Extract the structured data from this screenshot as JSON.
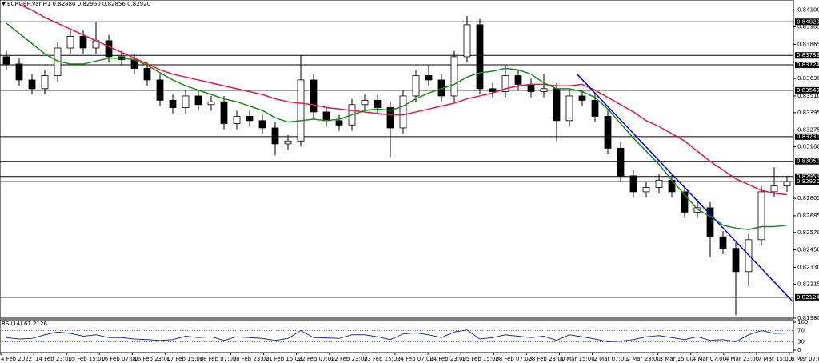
{
  "chart_data": [
    {
      "type": "candlestick",
      "title": "EURGBP,var,H1 0.82880 0.82960 0.82856 0.82920",
      "open": [
        0.8378,
        0.8373,
        0.8362,
        0.8356,
        0.8365,
        0.8384,
        0.8392,
        0.8384,
        0.8389,
        0.8378,
        0.8376,
        0.837,
        0.8362,
        0.8348,
        0.8343,
        0.8351,
        0.8345,
        0.8347,
        0.8332,
        0.8337,
        0.8334,
        0.8329,
        0.8318,
        0.832,
        0.8362,
        0.834,
        0.8334,
        0.8331,
        0.8345,
        0.8348,
        0.8343,
        0.8329,
        0.8351,
        0.8365,
        0.8362,
        0.8351,
        0.8378,
        0.84,
        0.8356,
        0.8354,
        0.8365,
        0.8359,
        0.8354,
        0.8356,
        0.8334,
        0.8351,
        0.8348,
        0.8337,
        0.8315,
        0.8296,
        0.8285,
        0.8288,
        0.8293,
        0.8285,
        0.8271,
        0.8274,
        0.8254,
        0.8246,
        0.823,
        0.8252,
        0.8285,
        0.8289
      ],
      "high": [
        0.8382,
        0.8377,
        0.8366,
        0.8369,
        0.8388,
        0.8396,
        0.8396,
        0.8402,
        0.8393,
        0.8382,
        0.838,
        0.8374,
        0.8366,
        0.8352,
        0.8355,
        0.8355,
        0.8351,
        0.8351,
        0.8341,
        0.8341,
        0.8338,
        0.8333,
        0.8324,
        0.8379,
        0.8366,
        0.8344,
        0.8338,
        0.8349,
        0.8352,
        0.8352,
        0.8347,
        0.8355,
        0.8369,
        0.8372,
        0.8366,
        0.8382,
        0.8406,
        0.8404,
        0.836,
        0.8372,
        0.8369,
        0.8363,
        0.8366,
        0.836,
        0.8355,
        0.8355,
        0.8352,
        0.8341,
        0.8319,
        0.83,
        0.8292,
        0.8297,
        0.8297,
        0.8289,
        0.828,
        0.8278,
        0.8258,
        0.825,
        0.8256,
        0.8289,
        0.8302,
        0.8296
      ],
      "low": [
        0.8369,
        0.8358,
        0.8352,
        0.8352,
        0.8361,
        0.838,
        0.838,
        0.838,
        0.8374,
        0.8372,
        0.8366,
        0.8358,
        0.8344,
        0.8339,
        0.8339,
        0.8341,
        0.8341,
        0.8328,
        0.8328,
        0.833,
        0.8325,
        0.831,
        0.8314,
        0.8316,
        0.8336,
        0.833,
        0.8327,
        0.8327,
        0.8341,
        0.8339,
        0.8309,
        0.8325,
        0.8347,
        0.8358,
        0.8347,
        0.8347,
        0.8374,
        0.8352,
        0.835,
        0.835,
        0.8355,
        0.835,
        0.835,
        0.832,
        0.833,
        0.8344,
        0.8333,
        0.8311,
        0.8292,
        0.8281,
        0.8281,
        0.8284,
        0.8281,
        0.8267,
        0.8267,
        0.824,
        0.8242,
        0.82,
        0.822,
        0.8248,
        0.8281,
        0.8285
      ],
      "close": [
        0.8373,
        0.8362,
        0.8356,
        0.8365,
        0.8384,
        0.8392,
        0.8384,
        0.8389,
        0.8378,
        0.8376,
        0.837,
        0.8362,
        0.8348,
        0.8343,
        0.8351,
        0.8345,
        0.8347,
        0.8332,
        0.8337,
        0.8334,
        0.8329,
        0.8318,
        0.832,
        0.8362,
        0.834,
        0.8334,
        0.8331,
        0.8345,
        0.8348,
        0.8343,
        0.8329,
        0.8351,
        0.8365,
        0.8362,
        0.8351,
        0.8378,
        0.84,
        0.8356,
        0.8354,
        0.8365,
        0.8359,
        0.8354,
        0.8356,
        0.8334,
        0.8351,
        0.8348,
        0.8337,
        0.8315,
        0.8296,
        0.8285,
        0.8288,
        0.8293,
        0.8285,
        0.8271,
        0.8274,
        0.8254,
        0.8246,
        0.823,
        0.8252,
        0.8285,
        0.8289,
        0.8292
      ],
      "lines": [
        {
          "color": "#e8173c",
          "values": [
            null,
            0.8414,
            0.841,
            0.8405,
            0.8401,
            0.8397,
            0.8393,
            0.8389,
            0.8385,
            0.8381,
            0.8377,
            0.8373,
            0.8369,
            0.8366,
            0.8364,
            0.8362,
            0.836,
            0.8358,
            0.8356,
            0.8354,
            0.8352,
            0.8349,
            0.8347,
            0.8346,
            0.8345,
            0.8343,
            0.8342,
            0.8341,
            0.834,
            0.8339,
            0.8338,
            0.8338,
            0.834,
            0.8342,
            0.8344,
            0.8346,
            0.8349,
            0.8351,
            0.8353,
            0.8356,
            0.8358,
            0.8359,
            0.8359,
            0.8358,
            0.8358,
            0.8359,
            0.8355,
            0.835,
            0.8345,
            0.834,
            0.8334,
            0.833,
            0.8325,
            0.832,
            0.8313,
            0.8306,
            0.83,
            0.8294,
            0.829,
            0.8286,
            0.8284,
            0.8283
          ]
        },
        {
          "color": "#1a8a1a",
          "values": [
            0.8401,
            0.8394,
            0.8387,
            0.838,
            0.8375,
            0.8373,
            0.8373,
            0.8375,
            0.8377,
            0.8377,
            0.8376,
            0.8372,
            0.8367,
            0.8362,
            0.8358,
            0.8355,
            0.8352,
            0.8349,
            0.8347,
            0.8344,
            0.8341,
            0.8336,
            0.8333,
            0.8334,
            0.8335,
            0.8334,
            0.8335,
            0.8338,
            0.8341,
            0.8342,
            0.8341,
            0.8344,
            0.8349,
            0.8353,
            0.8356,
            0.8359,
            0.8364,
            0.8367,
            0.8368,
            0.837,
            0.8369,
            0.8366,
            0.836,
            0.8356,
            0.8356,
            0.8354,
            0.835,
            0.8342,
            0.8332,
            0.8322,
            0.8313,
            0.8304,
            0.8293,
            0.8283,
            0.8273,
            0.8268,
            0.8262,
            0.826,
            0.8259,
            0.8261,
            0.8261,
            0.8262
          ]
        }
      ],
      "trendline": {
        "color": "#0000ff",
        "x": [
          44.6,
          61.5
        ],
        "values": [
          0.8366,
          0.8209
        ]
      },
      "levels": [
        {
          "value": 0.8402,
          "label": "0.84020"
        },
        {
          "value": 0.83789,
          "label": "0.83789"
        },
        {
          "value": 0.83724,
          "label": "0.83724"
        },
        {
          "value": 0.83549,
          "label": "0.83549"
        },
        {
          "value": 0.8323,
          "label": "0.83230"
        },
        {
          "value": 0.8306,
          "label": "0.83060"
        },
        {
          "value": 0.82955,
          "label": "0.82955"
        },
        {
          "value": 0.8292,
          "label": "0.82920"
        },
        {
          "value": 0.82124,
          "label": "0.82124"
        }
      ],
      "ylim": [
        0.8198,
        0.8417
      ],
      "yticks": [
        {
          "value": 0.841,
          "label": "0.84100"
        },
        {
          "value": 0.83985,
          "label": "0.83985"
        },
        {
          "value": 0.83865,
          "label": "0.83865"
        },
        {
          "value": 0.8363,
          "label": "0.83630"
        },
        {
          "value": 0.8351,
          "label": "0.83510"
        },
        {
          "value": 0.83395,
          "label": "0.83395"
        },
        {
          "value": 0.83275,
          "label": "0.83275"
        },
        {
          "value": 0.8316,
          "label": "0.83160"
        },
        {
          "value": 0.82805,
          "label": "0.82805"
        },
        {
          "value": 0.82685,
          "label": "0.82685"
        },
        {
          "value": 0.8257,
          "label": "0.82570"
        },
        {
          "value": 0.8245,
          "label": "0.82450"
        },
        {
          "value": 0.8233,
          "label": "0.82330"
        },
        {
          "value": 0.82215,
          "label": "0.82215"
        },
        {
          "value": 0.8198,
          "label": "0.81980"
        }
      ],
      "x_labels": [
        "4 Feb 2022",
        "14 Feb 23:00",
        "15 Feb 15:00",
        "16 Feb 07:00",
        "16 Feb 23:00",
        "17 Feb 15:00",
        "18 Feb 07:00",
        "18 Feb 23:00",
        "21 Feb 15:00",
        "22 Feb 07:00",
        "22 Feb 23:00",
        "23 Feb 15:00",
        "24 Feb 07:00",
        "24 Feb 23:00",
        "25 Feb 15:00",
        "28 Feb 07:00",
        "28 Feb 23:00",
        "1 Mar 15:00",
        "2 Mar 07:00",
        "2 Mar 23:00",
        "3 Mar 15:00",
        "4 Mar 07:00",
        "4 Mar 23:00",
        "7 Mar 15:00",
        "8 Mar 07:00"
      ]
    },
    {
      "type": "line",
      "title": "RSI(14) 61.2126",
      "color": "#1c2fa8",
      "values": [
        45,
        40,
        42,
        55,
        65,
        60,
        50,
        55,
        45,
        45,
        40,
        38,
        35,
        38,
        50,
        45,
        48,
        35,
        48,
        45,
        42,
        35,
        42,
        70,
        45,
        44,
        42,
        55,
        55,
        48,
        38,
        58,
        62,
        55,
        45,
        65,
        72,
        40,
        45,
        55,
        50,
        45,
        50,
        35,
        55,
        48,
        40,
        30,
        32,
        38,
        48,
        52,
        45,
        38,
        48,
        35,
        38,
        30,
        55,
        70,
        60,
        61
      ],
      "ylim": [
        0,
        100
      ],
      "yticks": [
        100,
        70,
        30,
        0
      ]
    }
  ]
}
